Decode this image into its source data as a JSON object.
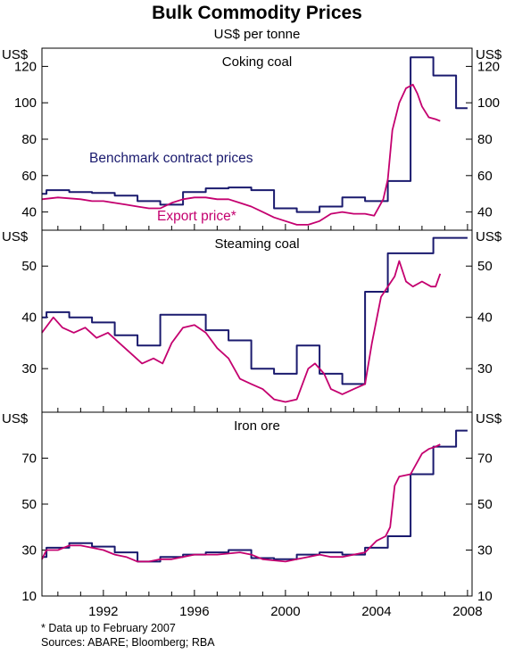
{
  "title": "Bulk Commodity Prices",
  "subtitle": "US$ per tonne",
  "footnote": "*   Data up to February 2007",
  "sources": "Sources: ABARE; Bloomberg; RBA",
  "colors": {
    "benchmark": "#1a1a6e",
    "export": "#c4006f"
  },
  "chart_data": [
    {
      "type": "line",
      "title": "Coking coal",
      "ylabel": "US$",
      "ylim": [
        30,
        130
      ],
      "yticks": [
        40,
        60,
        80,
        100,
        120
      ],
      "xlim": [
        1989.3,
        2008.2
      ],
      "xticks": [
        1992,
        1996,
        2000,
        2004,
        2008
      ],
      "annotations": [
        "Benchmark contract prices",
        "Export price*"
      ],
      "series": [
        {
          "name": "Benchmark contract prices",
          "step": true,
          "x": [
            1989.3,
            1989.5,
            1990.5,
            1991.5,
            1992.5,
            1993.5,
            1994.5,
            1995.5,
            1996.5,
            1997.5,
            1998.5,
            1999.5,
            2000.5,
            2001.5,
            2002.5,
            2003.5,
            2004.5,
            2005.5,
            2006.5,
            2007.5
          ],
          "y": [
            50,
            52,
            51,
            50.5,
            49,
            46,
            44,
            51,
            53,
            53.5,
            52,
            42,
            40,
            43,
            48,
            46,
            57,
            125,
            115,
            97
          ]
        },
        {
          "name": "Export price*",
          "step": false,
          "x": [
            1989.3,
            1990,
            1991,
            1991.5,
            1992,
            1992.5,
            1993,
            1993.5,
            1994,
            1994.5,
            1995,
            1995.5,
            1996,
            1996.5,
            1997,
            1997.5,
            1998,
            1998.5,
            1999,
            1999.5,
            2000,
            2000.5,
            2001,
            2001.5,
            2002,
            2002.5,
            2003,
            2003.5,
            2003.9,
            2004.3,
            2004.5,
            2004.7,
            2005,
            2005.3,
            2005.6,
            2005.8,
            2006,
            2006.3,
            2006.6,
            2006.8
          ],
          "y": [
            47,
            48,
            47,
            46,
            46,
            45,
            44,
            43,
            42,
            42,
            45,
            47,
            48,
            48,
            47,
            47,
            45,
            43,
            40,
            37,
            35,
            33,
            33,
            35,
            39,
            40,
            39,
            39,
            38,
            47,
            58,
            85,
            100,
            108,
            110,
            105,
            98,
            92,
            91,
            90
          ]
        }
      ]
    },
    {
      "type": "line",
      "title": "Steaming coal",
      "ylabel": "US$",
      "ylim": [
        21.5,
        57
      ],
      "yticks": [
        30,
        40,
        50
      ],
      "xlim": [
        1989.3,
        2008.2
      ],
      "xticks": [
        1992,
        1996,
        2000,
        2004,
        2008
      ],
      "series": [
        {
          "name": "Benchmark contract prices",
          "step": true,
          "x": [
            1989.3,
            1989.5,
            1990.5,
            1991.5,
            1992.5,
            1993.5,
            1994.5,
            1995.5,
            1996.5,
            1997.5,
            1998.5,
            1999.5,
            2000.5,
            2001.5,
            2002.5,
            2003.5,
            2004.5,
            2005.5,
            2006.5,
            2007.5
          ],
          "y": [
            40,
            41,
            40,
            39,
            36.5,
            34.5,
            40.5,
            40.5,
            37.5,
            35.5,
            30,
            29,
            34.5,
            29,
            27,
            45,
            52.5,
            52.5,
            55.5,
            55.5
          ]
        },
        {
          "name": "Export price*",
          "step": false,
          "x": [
            1989.3,
            1989.8,
            1990.2,
            1990.7,
            1991.2,
            1991.7,
            1992.2,
            1992.7,
            1993.2,
            1993.7,
            1994.2,
            1994.6,
            1995,
            1995.5,
            1996,
            1996.5,
            1997,
            1997.5,
            1998,
            1998.5,
            1999,
            1999.5,
            2000,
            2000.5,
            2001,
            2001.3,
            2001.7,
            2002,
            2002.5,
            2003,
            2003.5,
            2003.8,
            2004.2,
            2004.5,
            2004.8,
            2005,
            2005.3,
            2005.6,
            2006,
            2006.4,
            2006.6,
            2006.8
          ],
          "y": [
            37,
            40,
            38,
            37,
            38,
            36,
            37,
            35,
            33,
            31,
            32,
            31,
            35,
            38,
            38.5,
            37,
            34,
            32,
            28,
            27,
            26,
            24,
            23.5,
            24,
            30,
            31,
            29,
            26,
            25,
            26,
            27,
            35,
            44,
            46,
            48,
            51,
            47,
            46,
            47,
            46,
            46,
            48.5
          ]
        }
      ]
    },
    {
      "type": "line",
      "title": "Iron ore",
      "ylabel": "US$",
      "ylim": [
        10,
        90
      ],
      "yticks": [
        10,
        30,
        50,
        70
      ],
      "xlim": [
        1989.3,
        2008.2
      ],
      "xticks": [
        1992,
        1996,
        2000,
        2004,
        2008
      ],
      "series": [
        {
          "name": "Benchmark contract prices",
          "step": true,
          "x": [
            1989.3,
            1989.5,
            1990.5,
            1991.5,
            1992.5,
            1993.5,
            1994.5,
            1995.5,
            1996.5,
            1997.5,
            1998.5,
            1999.5,
            2000.5,
            2001.5,
            2002.5,
            2003.5,
            2004.5,
            2005.5,
            2006.5,
            2007.5
          ],
          "y": [
            27,
            31,
            33,
            31.5,
            29,
            25,
            27,
            28,
            29,
            30,
            26.5,
            26,
            28,
            29,
            28,
            31,
            36,
            63,
            75,
            82
          ]
        },
        {
          "name": "Export price*",
          "step": false,
          "x": [
            1989.3,
            1989.5,
            1990,
            1990.5,
            1991,
            1991.5,
            1992,
            1992.5,
            1993,
            1993.5,
            1994,
            1994.5,
            1995,
            1995.5,
            1996,
            1996.5,
            1997,
            1997.5,
            1998,
            1998.5,
            1999,
            1999.5,
            2000,
            2000.5,
            2001,
            2001.5,
            2002,
            2002.5,
            2003,
            2003.5,
            2004,
            2004.4,
            2004.6,
            2004.8,
            2005,
            2005.5,
            2006,
            2006.3,
            2006.6,
            2006.8
          ],
          "y": [
            26,
            30,
            30,
            32,
            32,
            31,
            30,
            28,
            27,
            25,
            25,
            26,
            26,
            27,
            28,
            28,
            28,
            28.5,
            29,
            28,
            26,
            25.5,
            25,
            26,
            27,
            28,
            27,
            27,
            28,
            29,
            34,
            36,
            40,
            58,
            62,
            63,
            72,
            74,
            75,
            76
          ]
        }
      ]
    }
  ]
}
